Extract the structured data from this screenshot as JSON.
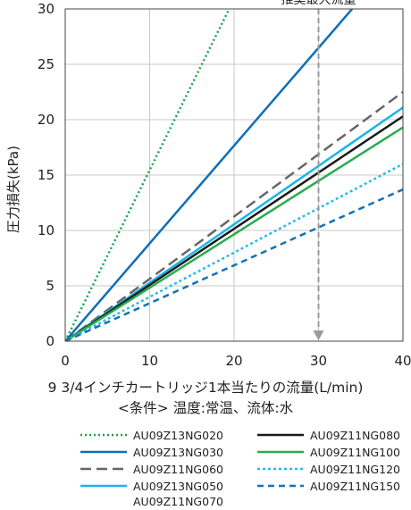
{
  "chart_data": {
    "type": "line",
    "title": "",
    "xlabel": "9 3/4インチカートリッジ1本当たりの流量(L/min)",
    "condition_note": "<条件> 温度:常温、流体:水",
    "ylabel": "圧力損失(kPa)",
    "xlim": [
      0,
      40
    ],
    "ylim": [
      0,
      30
    ],
    "xticks": [
      0,
      10,
      20,
      30,
      40
    ],
    "yticks": [
      0,
      5,
      10,
      15,
      20,
      25,
      30
    ],
    "grid": true,
    "annotation": {
      "text": "推奨最大流量",
      "x": 30
    },
    "legend_position": "bottom",
    "series": [
      {
        "name": "AU09Z13NG020",
        "color": "#1aa34a",
        "dash": "2,3",
        "x": [
          0,
          20
        ],
        "y": [
          0,
          30.9
        ]
      },
      {
        "name": "AU09Z13NG030",
        "color": "#0f6eb8",
        "dash": "",
        "x": [
          0,
          35
        ],
        "y": [
          0,
          30.9
        ]
      },
      {
        "name": "AU09Z11NG060",
        "color": "#666666",
        "dash": "12,6",
        "x": [
          0,
          40
        ],
        "y": [
          0,
          22.5
        ]
      },
      {
        "name": "AU09Z13NG050",
        "sub_name": "AU09Z11NG070",
        "color": "#19b5e6",
        "dash": "",
        "x": [
          0,
          40
        ],
        "y": [
          0,
          21.1
        ]
      },
      {
        "name": "AU09Z11NG080",
        "color": "#1a1a1a",
        "dash": "",
        "x": [
          0,
          40
        ],
        "y": [
          0,
          20.3
        ]
      },
      {
        "name": "AU09Z11NG100",
        "color": "#2aab4e",
        "dash": "",
        "x": [
          0,
          40
        ],
        "y": [
          0,
          19.3
        ]
      },
      {
        "name": "AU09Z11NG120",
        "color": "#25bce8",
        "dash": "3,3",
        "x": [
          0,
          40
        ],
        "y": [
          0,
          16.0
        ]
      },
      {
        "name": "AU09Z11NG150",
        "color": "#1570b5",
        "dash": "7,5",
        "x": [
          0,
          40
        ],
        "y": [
          0,
          13.7
        ]
      }
    ]
  }
}
